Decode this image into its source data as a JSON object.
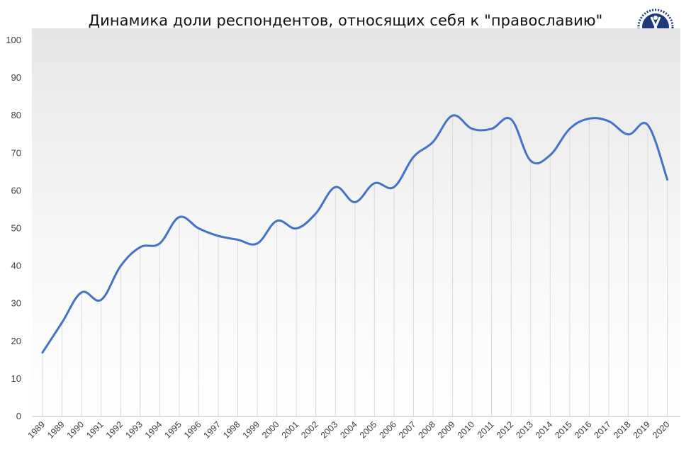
{
  "chart_data": {
    "type": "line",
    "title": "Динамика доли респондентов, относящих себя к \"православию\"",
    "xlabel": "",
    "ylabel": "",
    "ylim": [
      0,
      100
    ],
    "yticks": [
      0,
      10,
      20,
      30,
      40,
      50,
      60,
      70,
      80,
      90,
      100
    ],
    "categories": [
      "1989",
      "1989",
      "1990",
      "1991",
      "1992",
      "1993",
      "1994",
      "1995",
      "1996",
      "1997",
      "1998",
      "1999",
      "2000",
      "2001",
      "2002",
      "2003",
      "2004",
      "2005",
      "2006",
      "2007",
      "2008",
      "2009",
      "2010",
      "2011",
      "2012",
      "2013",
      "2014",
      "2015",
      "2016",
      "2017",
      "2018",
      "2019",
      "2020"
    ],
    "series": [
      {
        "values": [
          17,
          25,
          33,
          31,
          40,
          45,
          46,
          53,
          50,
          48,
          47,
          46,
          52,
          50,
          54,
          61,
          57,
          62,
          61,
          69,
          73,
          80,
          76.5,
          76.5,
          79,
          68,
          69.5,
          76.5,
          79.2,
          78.5,
          75,
          77.5,
          63
        ],
        "color": "#4472c4"
      }
    ],
    "grid": "vertical",
    "legend": "none",
    "background": "gradient-grey-to-white"
  },
  "logo": {
    "name": "university-emblem",
    "color": "#1f3a7a"
  }
}
